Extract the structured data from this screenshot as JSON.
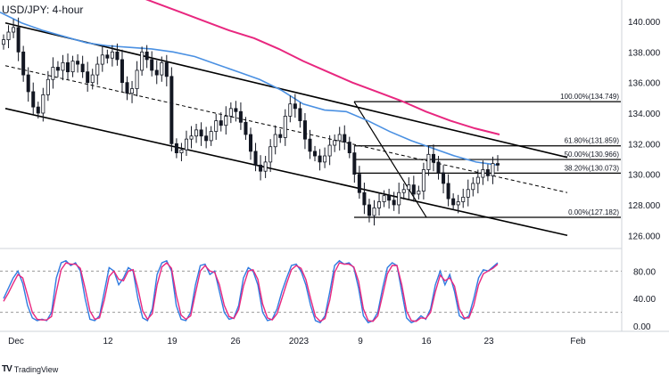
{
  "header": {
    "title": "USD/JPY: 4-hour"
  },
  "branding": {
    "mark": "TV",
    "name": "TradingView"
  },
  "colors": {
    "candle": "#131722",
    "ma_blue": "#4a90e2",
    "ma_pink": "#e8277f",
    "stoch_k": "#2f7be0",
    "stoch_d": "#e8277f",
    "channel": "#000000",
    "grid_dash": "#9a9a9a"
  },
  "chart_data": [
    {
      "type": "candlestick",
      "title": "USD/JPY: 4-hour",
      "ylim": [
        125.2,
        141.4
      ],
      "y_ticks": [
        "140.000",
        "138.000",
        "136.000",
        "134.000",
        "132.000",
        "130.000",
        "128.000",
        "126.000"
      ],
      "x_ticks": [
        "Dec",
        "12",
        "19",
        "26",
        "2023",
        "9",
        "16",
        "23",
        "Feb"
      ],
      "grid": false,
      "close_series": [
        138.8,
        139.3,
        139.6,
        138.0,
        136.5,
        135.4,
        134.4,
        134.0,
        135.2,
        136.2,
        137.0,
        136.8,
        137.3,
        136.7,
        137.4,
        137.2,
        136.7,
        136.0,
        136.5,
        137.2,
        137.8,
        137.6,
        138.0,
        137.5,
        136.0,
        135.3,
        135.6,
        136.8,
        138.0,
        137.5,
        136.8,
        136.5,
        137.3,
        136.4,
        132.0,
        131.4,
        131.6,
        132.3,
        132.5,
        132.9,
        132.5,
        132.2,
        132.8,
        133.5,
        133.2,
        133.8,
        134.3,
        134.1,
        133.4,
        132.6,
        131.5,
        130.6,
        130.2,
        130.8,
        131.8,
        132.6,
        132.4,
        133.8,
        134.6,
        134.3,
        133.5,
        132.3,
        131.5,
        131.2,
        130.8,
        131.2,
        131.9,
        132.2,
        132.6,
        132.1,
        131.4,
        130.0,
        128.8,
        128.0,
        127.3,
        127.8,
        128.2,
        128.6,
        128.3,
        128.0,
        128.8,
        129.0,
        129.3,
        128.7,
        128.9,
        130.3,
        131.3,
        130.8,
        130.1,
        129.4,
        128.4,
        128.0,
        128.2,
        128.5,
        129.0,
        129.4,
        129.8,
        130.3,
        129.9,
        130.7,
        130.6
      ],
      "indicators": [
        {
          "name": "SMA fast",
          "color": "#4a90e2",
          "values": [
            140.6,
            139.9,
            139.4,
            139.0,
            138.6,
            138.4,
            138.3,
            138.2,
            138.0,
            137.7,
            137.2,
            136.7,
            136.2,
            135.5,
            134.6,
            134.2,
            134.1,
            133.5,
            132.8,
            132.2,
            131.7,
            131.2,
            130.8,
            130.6
          ]
        },
        {
          "name": "SMA slow",
          "color": "#e8277f",
          "values": [
            142.2,
            141.8,
            141.2,
            140.6,
            140.0,
            139.4,
            138.9,
            138.2,
            137.4,
            136.7,
            136.0,
            135.4,
            134.8,
            134.1,
            133.5,
            133.0,
            132.6
          ]
        }
      ],
      "annotations": [
        {
          "type": "channel",
          "upper": [
            [
              139.9
            ],
            [
              131.1
            ]
          ],
          "lower": [
            [
              134.3
            ],
            [
              126.0
            ]
          ],
          "midline": [
            137.1,
            128.8
          ]
        },
        {
          "type": "fibonacci",
          "levels": [
            {
              "label": "100.00%(134.749)",
              "value": 134.749
            },
            {
              "label": "61.80%(131.859)",
              "value": 131.859
            },
            {
              "label": "50.00%(130.966)",
              "value": 130.966
            },
            {
              "label": "38.20%(130.073)",
              "value": 130.073
            },
            {
              "label": "0.00%(127.182)",
              "value": 127.182
            }
          ]
        }
      ]
    },
    {
      "type": "line",
      "title": "",
      "ylim": [
        -5,
        105
      ],
      "y_ticks": [
        "80.00",
        "40.00",
        "0.00"
      ],
      "reference_lines": [
        80,
        20
      ],
      "series": [
        {
          "color": "#2f7be0",
          "values": [
            40,
            55,
            70,
            80,
            62,
            30,
            12,
            8,
            10,
            8,
            20,
            70,
            92,
            95,
            88,
            92,
            80,
            40,
            10,
            8,
            15,
            50,
            85,
            80,
            60,
            70,
            85,
            80,
            40,
            12,
            8,
            25,
            75,
            92,
            95,
            80,
            30,
            10,
            8,
            20,
            60,
            88,
            90,
            75,
            80,
            50,
            20,
            10,
            12,
            30,
            70,
            85,
            80,
            60,
            20,
            8,
            10,
            25,
            50,
            70,
            88,
            90,
            80,
            60,
            30,
            8,
            5,
            15,
            50,
            88,
            95,
            90,
            92,
            85,
            55,
            15,
            5,
            8,
            20,
            55,
            85,
            92,
            88,
            50,
            12,
            5,
            8,
            15,
            10,
            25,
            60,
            80,
            60,
            75,
            50,
            15,
            10,
            15,
            40,
            70,
            82,
            80,
            86,
            92
          ]
        },
        {
          "color": "#e8277f",
          "values": [
            36,
            48,
            62,
            75,
            70,
            45,
            20,
            10,
            9,
            9,
            14,
            50,
            82,
            92,
            90,
            90,
            84,
            55,
            22,
            10,
            12,
            38,
            72,
            80,
            68,
            66,
            80,
            82,
            55,
            22,
            10,
            18,
            60,
            86,
            92,
            84,
            45,
            16,
            10,
            15,
            48,
            80,
            88,
            80,
            78,
            60,
            30,
            14,
            11,
            24,
            58,
            80,
            82,
            68,
            32,
            12,
            9,
            18,
            40,
            62,
            82,
            88,
            84,
            68,
            40,
            14,
            7,
            11,
            38,
            78,
            92,
            90,
            90,
            86,
            65,
            25,
            8,
            7,
            15,
            45,
            76,
            88,
            88,
            60,
            22,
            8,
            7,
            12,
            11,
            20,
            50,
            74,
            66,
            70,
            58,
            25,
            12,
            12,
            30,
            60,
            76,
            80,
            84,
            90
          ]
        }
      ]
    }
  ]
}
